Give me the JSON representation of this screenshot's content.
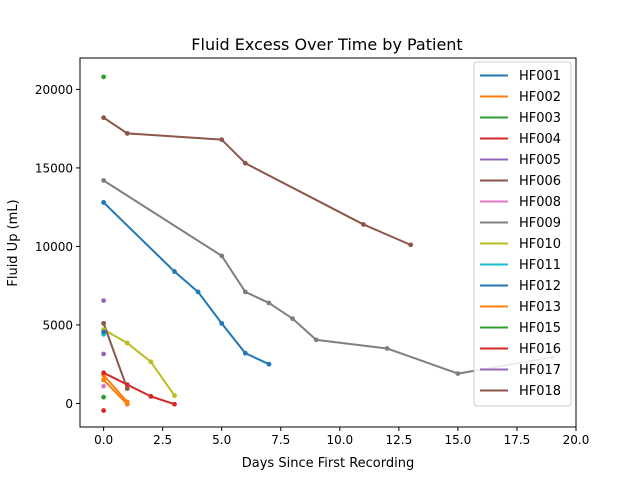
{
  "chart_data": {
    "type": "line",
    "title": "Fluid Excess Over Time by Patient",
    "xlabel": "Days Since First Recording",
    "ylabel": "Fluid Up (mL)",
    "xlim": [
      -1,
      20
    ],
    "ylim": [
      -1500,
      22000
    ],
    "xticks": [
      0,
      2.5,
      5,
      7.5,
      10,
      12.5,
      15,
      17.5,
      20
    ],
    "xtick_labels": [
      "0.0",
      "2.5",
      "5.0",
      "7.5",
      "10.0",
      "12.5",
      "15.0",
      "17.5",
      "20.0"
    ],
    "yticks": [
      0,
      5000,
      10000,
      15000,
      20000
    ],
    "ytick_labels": [
      "0",
      "5000",
      "10000",
      "15000",
      "20000"
    ],
    "grid": false,
    "legend_position": "top-right",
    "series": [
      {
        "name": "HF001",
        "color": "#1f77b4",
        "points": [
          [
            0,
            12800
          ],
          [
            3,
            8400
          ],
          [
            4,
            7100
          ],
          [
            5,
            5100
          ],
          [
            6,
            3200
          ],
          [
            7,
            2500
          ]
        ]
      },
      {
        "name": "HF002",
        "color": "#ff7f0e",
        "points": [
          [
            0,
            1800
          ],
          [
            1,
            100
          ]
        ]
      },
      {
        "name": "HF003",
        "color": "#2ca02c",
        "points": [
          [
            0,
            20800
          ]
        ]
      },
      {
        "name": "HF004",
        "color": "#d62728",
        "points": [
          [
            0,
            -450
          ]
        ]
      },
      {
        "name": "HF005",
        "color": "#9467bd",
        "points": [
          [
            0,
            6550
          ]
        ]
      },
      {
        "name": "HF006",
        "color": "#8c564b",
        "points": [
          [
            0,
            18200
          ],
          [
            1,
            17200
          ],
          [
            5,
            16800
          ],
          [
            6,
            15300
          ],
          [
            11,
            11400
          ],
          [
            13,
            10100
          ]
        ]
      },
      {
        "name": "HF008",
        "color": "#e377c2",
        "points": [
          [
            0,
            1100
          ]
        ]
      },
      {
        "name": "HF009",
        "color": "#7f7f7f",
        "points": [
          [
            0,
            14200
          ],
          [
            5,
            9400
          ],
          [
            6,
            7100
          ],
          [
            7,
            6400
          ],
          [
            8,
            5400
          ],
          [
            9,
            4050
          ],
          [
            12,
            3500
          ],
          [
            15,
            1900
          ],
          [
            19,
            2950
          ]
        ]
      },
      {
        "name": "HF010",
        "color": "#bcbd22",
        "points": [
          [
            0,
            4700
          ],
          [
            1,
            3850
          ],
          [
            2,
            2650
          ],
          [
            3,
            500
          ]
        ]
      },
      {
        "name": "HF011",
        "color": "#17becf",
        "points": [
          [
            0,
            4400
          ]
        ]
      },
      {
        "name": "HF012",
        "color": "#1f77b4",
        "points": [
          [
            0,
            4550
          ]
        ]
      },
      {
        "name": "HF013",
        "color": "#ff7f0e",
        "points": [
          [
            0,
            1500
          ],
          [
            1,
            -50
          ]
        ]
      },
      {
        "name": "HF015",
        "color": "#2ca02c",
        "points": [
          [
            0,
            400
          ]
        ]
      },
      {
        "name": "HF016",
        "color": "#d62728",
        "points": [
          [
            0,
            1950
          ],
          [
            1,
            1200
          ],
          [
            2,
            450
          ],
          [
            3,
            -50
          ]
        ]
      },
      {
        "name": "HF017",
        "color": "#9467bd",
        "points": [
          [
            0,
            3150
          ]
        ]
      },
      {
        "name": "HF018",
        "color": "#8c564b",
        "points": [
          [
            0,
            5100
          ],
          [
            1,
            950
          ]
        ]
      }
    ]
  }
}
